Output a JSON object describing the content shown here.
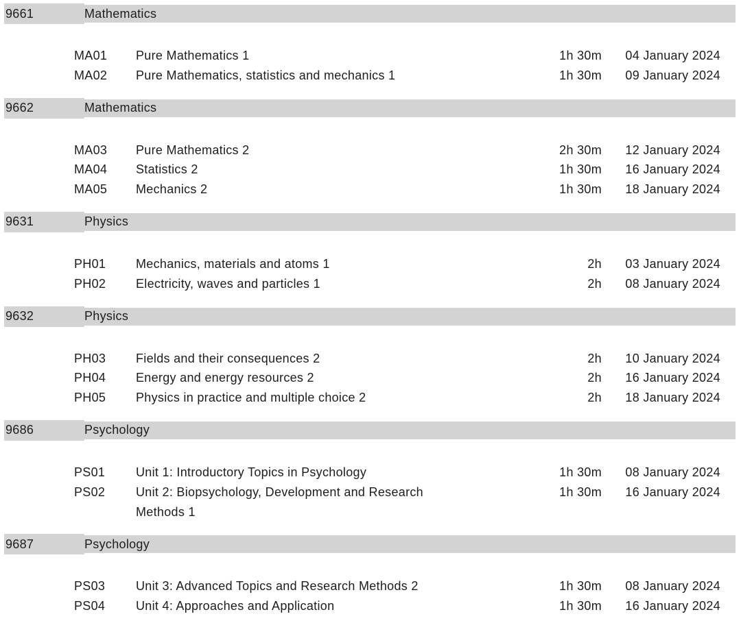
{
  "page": {
    "band_color": "#d3d3d3",
    "text_color": "#1d1d1d",
    "background_color": "#ffffff"
  },
  "sections": [
    {
      "code": "9661",
      "subject": "Mathematics",
      "units": [
        {
          "code": "MA01",
          "title": "Pure Mathematics 1",
          "duration": "1h 30m",
          "date": "04 January 2024"
        },
        {
          "code": "MA02",
          "title": "Pure Mathematics, statistics and mechanics 1",
          "duration": "1h 30m",
          "date": "09 January 2024"
        }
      ]
    },
    {
      "code": "9662",
      "subject": "Mathematics",
      "units": [
        {
          "code": "MA03",
          "title": "Pure Mathematics 2",
          "duration": "2h 30m",
          "date": "12 January 2024"
        },
        {
          "code": "MA04",
          "title": "Statistics 2",
          "duration": "1h 30m",
          "date": "16 January 2024"
        },
        {
          "code": "MA05",
          "title": "Mechanics 2",
          "duration": "1h 30m",
          "date": "18 January 2024"
        }
      ]
    },
    {
      "code": "9631",
      "subject": "Physics",
      "units": [
        {
          "code": "PH01",
          "title": "Mechanics, materials and atoms 1",
          "duration": "2h",
          "date": "03 January 2024"
        },
        {
          "code": "PH02",
          "title": "Electricity, waves and particles 1",
          "duration": "2h",
          "date": "08 January 2024"
        }
      ]
    },
    {
      "code": "9632",
      "subject": "Physics",
      "units": [
        {
          "code": "PH03",
          "title": "Fields and their consequences 2",
          "duration": "2h",
          "date": "10 January 2024"
        },
        {
          "code": "PH04",
          "title": "Energy and energy resources 2",
          "duration": "2h",
          "date": "16 January 2024"
        },
        {
          "code": "PH05",
          "title": "Physics in practice and multiple choice 2",
          "duration": "2h",
          "date": "18 January 2024"
        }
      ]
    },
    {
      "code": "9686",
      "subject": "Psychology",
      "units": [
        {
          "code": "PS01",
          "title": "Unit 1: Introductory Topics in Psychology",
          "duration": "1h 30m",
          "date": "08 January 2024"
        },
        {
          "code": "PS02",
          "title": "Unit 2: Biopsychology, Development and Research Methods 1",
          "duration": "1h 30m",
          "date": "16 January 2024"
        }
      ]
    },
    {
      "code": "9687",
      "subject": "Psychology",
      "units": [
        {
          "code": "PS03",
          "title": "Unit 3: Advanced Topics and Research Methods 2",
          "duration": "1h 30m",
          "date": "08 January 2024"
        },
        {
          "code": "PS04",
          "title": "Unit 4: Approaches and Application",
          "duration": "1h 30m",
          "date": "16 January 2024"
        }
      ]
    }
  ]
}
